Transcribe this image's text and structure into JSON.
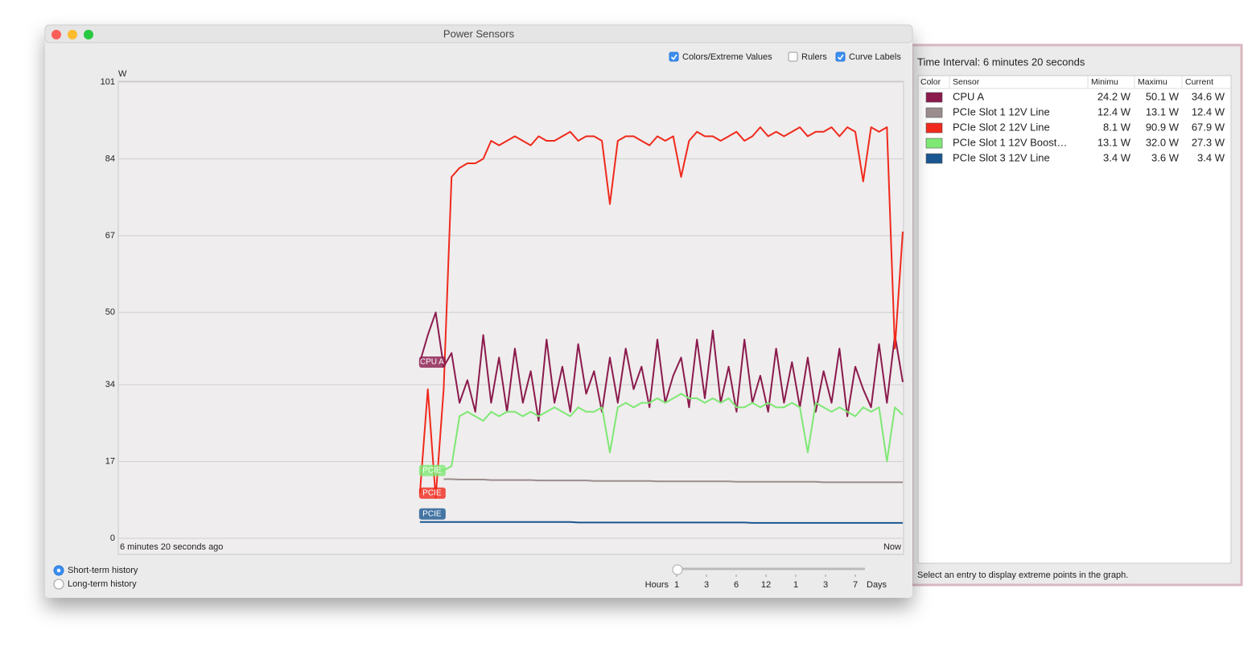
{
  "window": {
    "title": "Power Sensors"
  },
  "options": [
    {
      "label": "Colors/Extreme Values",
      "checked": true
    },
    {
      "label": "Rulers",
      "checked": false
    },
    {
      "label": "Curve Labels",
      "checked": true
    }
  ],
  "chart_data": {
    "type": "line",
    "y_unit": "W",
    "x_start_label": "6 minutes 20 seconds ago",
    "x_end_label": "Now",
    "ylim": [
      0,
      101
    ],
    "yticks": [
      0,
      17,
      34,
      50,
      67,
      84,
      101
    ],
    "grid": true,
    "series": [
      {
        "label": "CPU A",
        "color": "#8b1a4d",
        "values": [
          null,
          null,
          null,
          null,
          null,
          null,
          null,
          null,
          null,
          null,
          null,
          null,
          null,
          null,
          null,
          null,
          null,
          null,
          null,
          null,
          null,
          null,
          null,
          null,
          null,
          null,
          null,
          null,
          null,
          null,
          null,
          null,
          null,
          null,
          null,
          null,
          null,
          null,
          39,
          45,
          50,
          38,
          41,
          30,
          35,
          28,
          45,
          30,
          40,
          28,
          42,
          30,
          37,
          26,
          44,
          30,
          38,
          28,
          43,
          32,
          37,
          28,
          40,
          30,
          42,
          33,
          38,
          29,
          44,
          30,
          36,
          40,
          29,
          44,
          31,
          46,
          30,
          38,
          28,
          44,
          30,
          36,
          28,
          42,
          30,
          39,
          29,
          40,
          28,
          37,
          30,
          42,
          27,
          38,
          33,
          29,
          43,
          30,
          45,
          34.6
        ]
      },
      {
        "color": "#9b8d8d",
        "values": [
          null,
          null,
          null,
          null,
          null,
          null,
          null,
          null,
          null,
          null,
          null,
          null,
          null,
          null,
          null,
          null,
          null,
          null,
          null,
          null,
          null,
          null,
          null,
          null,
          null,
          null,
          null,
          null,
          null,
          null,
          null,
          null,
          null,
          null,
          null,
          null,
          null,
          null,
          null,
          null,
          null,
          13.1,
          13.1,
          13.0,
          13.0,
          13.0,
          13.0,
          12.9,
          12.9,
          12.9,
          12.9,
          12.9,
          12.9,
          12.8,
          12.8,
          12.8,
          12.8,
          12.8,
          12.8,
          12.8,
          12.7,
          12.7,
          12.7,
          12.7,
          12.7,
          12.7,
          12.7,
          12.7,
          12.6,
          12.6,
          12.6,
          12.6,
          12.6,
          12.6,
          12.6,
          12.6,
          12.6,
          12.6,
          12.5,
          12.5,
          12.5,
          12.5,
          12.5,
          12.5,
          12.5,
          12.5,
          12.5,
          12.5,
          12.5,
          12.4,
          12.4,
          12.4,
          12.4,
          12.4,
          12.4,
          12.4,
          12.4,
          12.4,
          12.4,
          12.4
        ]
      },
      {
        "label": "PCIE",
        "color": "#f0291c",
        "values": [
          null,
          null,
          null,
          null,
          null,
          null,
          null,
          null,
          null,
          null,
          null,
          null,
          null,
          null,
          null,
          null,
          null,
          null,
          null,
          null,
          null,
          null,
          null,
          null,
          null,
          null,
          null,
          null,
          null,
          null,
          null,
          null,
          null,
          null,
          null,
          null,
          null,
          null,
          10,
          33,
          9,
          33,
          80,
          82,
          83,
          83,
          84,
          88,
          87,
          88,
          89,
          88,
          87,
          89,
          88,
          88,
          89,
          90,
          88,
          89,
          89,
          88,
          74,
          88,
          89,
          89,
          88,
          87,
          89,
          88,
          89,
          80,
          88,
          90,
          89,
          89,
          88,
          89,
          90,
          88,
          89,
          91,
          89,
          90,
          89,
          90,
          91,
          89,
          90,
          90,
          91,
          89,
          91,
          90,
          79,
          91,
          90,
          91,
          42,
          67.9
        ]
      },
      {
        "label": "PCIE",
        "color": "#7ee874",
        "values": [
          null,
          null,
          null,
          null,
          null,
          null,
          null,
          null,
          null,
          null,
          null,
          null,
          null,
          null,
          null,
          null,
          null,
          null,
          null,
          null,
          null,
          null,
          null,
          null,
          null,
          null,
          null,
          null,
          null,
          null,
          null,
          null,
          null,
          null,
          null,
          null,
          null,
          null,
          15,
          15,
          15,
          15,
          16,
          27,
          28,
          27,
          26,
          28,
          27,
          28,
          28,
          27,
          28,
          27,
          28,
          29,
          28,
          27,
          29,
          28,
          28,
          29,
          19,
          29,
          30,
          29,
          30,
          30,
          31,
          30,
          31,
          32,
          31,
          31,
          30,
          31,
          30,
          31,
          29,
          29,
          30,
          29,
          30,
          29,
          29,
          30,
          29,
          19,
          30,
          29,
          28,
          29,
          28,
          27,
          29,
          28,
          29,
          17,
          29,
          27.3
        ]
      },
      {
        "label": "PCIE",
        "color": "#1a5690",
        "values": [
          null,
          null,
          null,
          null,
          null,
          null,
          null,
          null,
          null,
          null,
          null,
          null,
          null,
          null,
          null,
          null,
          null,
          null,
          null,
          null,
          null,
          null,
          null,
          null,
          null,
          null,
          null,
          null,
          null,
          null,
          null,
          null,
          null,
          null,
          null,
          null,
          null,
          null,
          3.6,
          3.6,
          3.6,
          3.6,
          3.6,
          3.6,
          3.6,
          3.6,
          3.6,
          3.6,
          3.6,
          3.6,
          3.6,
          3.6,
          3.6,
          3.6,
          3.6,
          3.6,
          3.6,
          3.6,
          3.5,
          3.5,
          3.5,
          3.5,
          3.5,
          3.5,
          3.5,
          3.5,
          3.5,
          3.5,
          3.5,
          3.5,
          3.5,
          3.5,
          3.5,
          3.5,
          3.5,
          3.5,
          3.5,
          3.5,
          3.5,
          3.5,
          3.4,
          3.4,
          3.4,
          3.4,
          3.4,
          3.4,
          3.4,
          3.4,
          3.4,
          3.4,
          3.4,
          3.4,
          3.4,
          3.4,
          3.4,
          3.4,
          3.4,
          3.4,
          3.4,
          3.4
        ]
      }
    ]
  },
  "history": [
    {
      "label": "Short-term history",
      "selected": true
    },
    {
      "label": "Long-term history",
      "selected": false
    }
  ],
  "slider": {
    "left_label": "Hours",
    "right_label": "Days",
    "ticks": [
      "1",
      "3",
      "6",
      "12",
      "1",
      "3",
      "7"
    ]
  },
  "panel": {
    "interval": "Time Interval: 6 minutes 20 seconds",
    "columns": [
      "Color",
      "Sensor",
      "Minimu",
      "Maximu",
      "Current"
    ],
    "rows": [
      [
        "CPU A",
        "24.2 W",
        "50.1 W",
        "34.6 W"
      ],
      [
        "PCIe Slot 1 12V Line",
        "12.4 W",
        "13.1 W",
        "12.4 W"
      ],
      [
        "PCIe Slot 2 12V Line",
        "8.1 W",
        "90.9 W",
        "67.9 W"
      ],
      [
        "PCIe Slot 1 12V Boost…",
        "13.1 W",
        "32.0 W",
        "27.3 W"
      ],
      [
        "PCIe Slot 3 12V Line",
        "3.4 W",
        "3.6 W",
        "3.4 W"
      ]
    ],
    "footer": "Select an entry to display extreme points in the graph."
  }
}
